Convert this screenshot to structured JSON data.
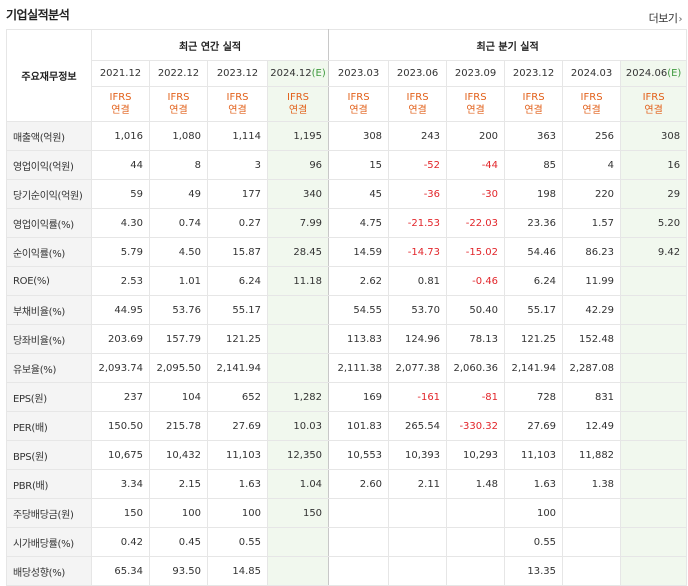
{
  "header": {
    "title": "기업실적분석",
    "more_label": "더보기",
    "more_arrow": "›"
  },
  "table": {
    "corner_label": "주요재무정보",
    "annual_group": "최근 연간 실적",
    "quarter_group": "최근 분기 실적",
    "periods": [
      {
        "label": "2021.12",
        "est": "",
        "std": "IFRS",
        "scope": "연결"
      },
      {
        "label": "2022.12",
        "est": "",
        "std": "IFRS",
        "scope": "연결"
      },
      {
        "label": "2023.12",
        "est": "",
        "std": "IFRS",
        "scope": "연결"
      },
      {
        "label": "2024.12",
        "est": "(E)",
        "std": "IFRS",
        "scope": "연결"
      },
      {
        "label": "2023.03",
        "est": "",
        "std": "IFRS",
        "scope": "연결"
      },
      {
        "label": "2023.06",
        "est": "",
        "std": "IFRS",
        "scope": "연결"
      },
      {
        "label": "2023.09",
        "est": "",
        "std": "IFRS",
        "scope": "연결"
      },
      {
        "label": "2023.12",
        "est": "",
        "std": "IFRS",
        "scope": "연결"
      },
      {
        "label": "2024.03",
        "est": "",
        "std": "IFRS",
        "scope": "연결"
      },
      {
        "label": "2024.06",
        "est": "(E)",
        "std": "IFRS",
        "scope": "연결"
      }
    ],
    "rows": [
      {
        "label": "매출액(억원)",
        "values": [
          "1,016",
          "1,080",
          "1,114",
          "1,195",
          "308",
          "243",
          "200",
          "363",
          "256",
          "308"
        ]
      },
      {
        "label": "영업이익(억원)",
        "values": [
          "44",
          "8",
          "3",
          "96",
          "15",
          "-52",
          "-44",
          "85",
          "4",
          "16"
        ]
      },
      {
        "label": "당기순이익(억원)",
        "values": [
          "59",
          "49",
          "177",
          "340",
          "45",
          "-36",
          "-30",
          "198",
          "220",
          "29"
        ]
      },
      {
        "label": "영업이익률(%)",
        "values": [
          "4.30",
          "0.74",
          "0.27",
          "7.99",
          "4.75",
          "-21.53",
          "-22.03",
          "23.36",
          "1.57",
          "5.20"
        ]
      },
      {
        "label": "순이익률(%)",
        "values": [
          "5.79",
          "4.50",
          "15.87",
          "28.45",
          "14.59",
          "-14.73",
          "-15.02",
          "54.46",
          "86.23",
          "9.42"
        ]
      },
      {
        "label": "ROE(%)",
        "values": [
          "2.53",
          "1.01",
          "6.24",
          "11.18",
          "2.62",
          "0.81",
          "-0.46",
          "6.24",
          "11.99",
          ""
        ]
      },
      {
        "label": "부채비율(%)",
        "values": [
          "44.95",
          "53.76",
          "55.17",
          "",
          "54.55",
          "53.70",
          "50.40",
          "55.17",
          "42.29",
          ""
        ]
      },
      {
        "label": "당좌비율(%)",
        "values": [
          "203.69",
          "157.79",
          "121.25",
          "",
          "113.83",
          "124.96",
          "78.13",
          "121.25",
          "152.48",
          ""
        ]
      },
      {
        "label": "유보율(%)",
        "values": [
          "2,093.74",
          "2,095.50",
          "2,141.94",
          "",
          "2,111.38",
          "2,077.38",
          "2,060.36",
          "2,141.94",
          "2,287.08",
          ""
        ]
      },
      {
        "label": "EPS(원)",
        "values": [
          "237",
          "104",
          "652",
          "1,282",
          "169",
          "-161",
          "-81",
          "728",
          "831",
          ""
        ]
      },
      {
        "label": "PER(배)",
        "values": [
          "150.50",
          "215.78",
          "27.69",
          "10.03",
          "101.83",
          "265.54",
          "-330.32",
          "27.69",
          "12.49",
          ""
        ]
      },
      {
        "label": "BPS(원)",
        "values": [
          "10,675",
          "10,432",
          "11,103",
          "12,350",
          "10,553",
          "10,393",
          "10,293",
          "11,103",
          "11,882",
          ""
        ]
      },
      {
        "label": "PBR(배)",
        "values": [
          "3.34",
          "2.15",
          "1.63",
          "1.04",
          "2.60",
          "2.11",
          "1.48",
          "1.63",
          "1.38",
          ""
        ]
      },
      {
        "label": "주당배당금(원)",
        "values": [
          "150",
          "100",
          "100",
          "150",
          "",
          "",
          "",
          "100",
          "",
          ""
        ]
      },
      {
        "label": "시가배당률(%)",
        "values": [
          "0.42",
          "0.45",
          "0.55",
          "",
          "",
          "",
          "",
          "0.55",
          "",
          ""
        ]
      },
      {
        "label": "배당성향(%)",
        "values": [
          "65.34",
          "93.50",
          "14.85",
          "",
          "",
          "",
          "",
          "13.35",
          "",
          ""
        ]
      }
    ]
  },
  "colors": {
    "negative": "#e2262b",
    "ifrs": "#e2601a",
    "estimate_bg": "#f1f8ee",
    "estimate_tag": "#3f9a3f"
  }
}
